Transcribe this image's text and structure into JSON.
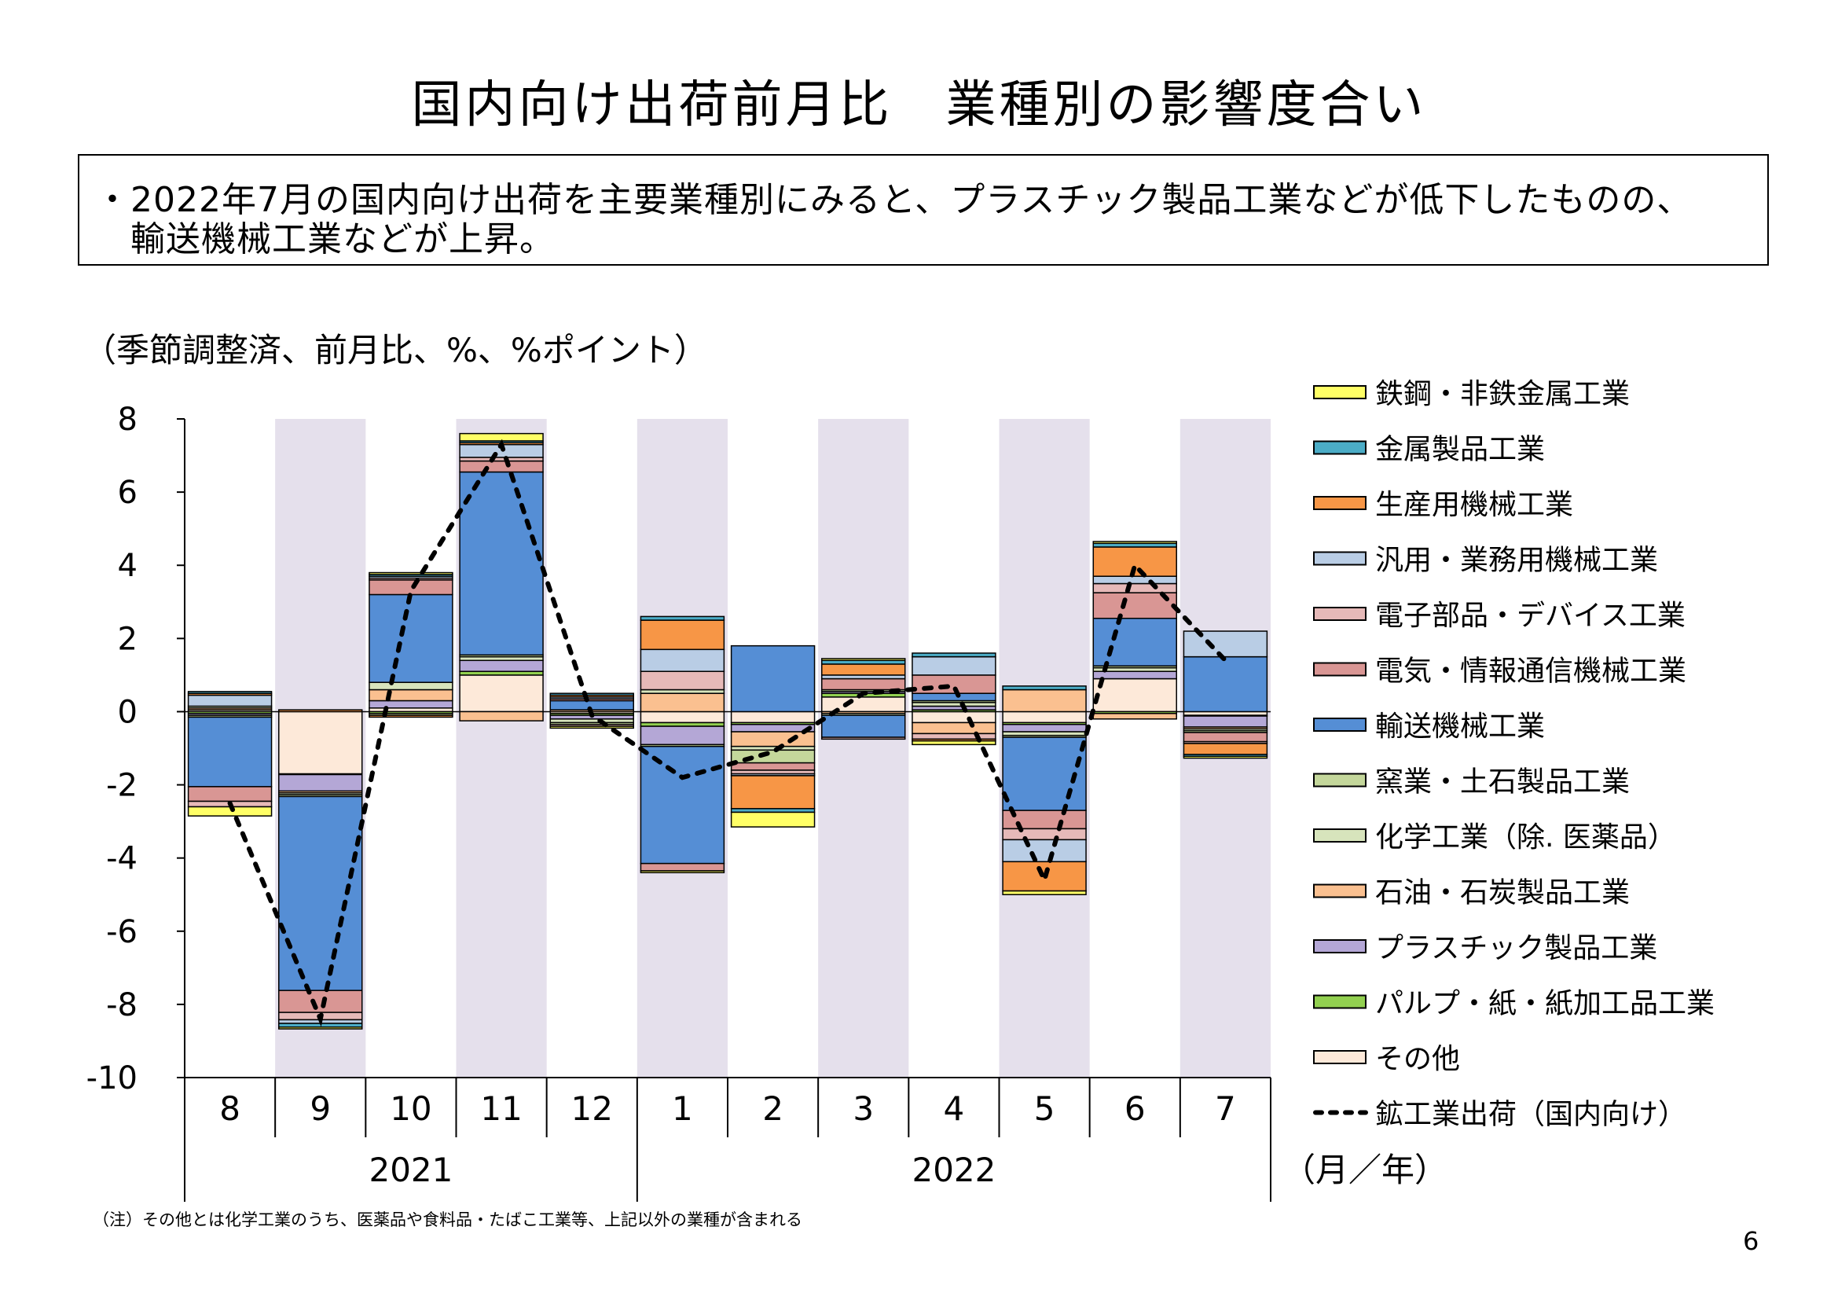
{
  "page": {
    "title": "国内向け出荷前月比　業種別の影響度合い",
    "summary_lines": [
      "・2022年7月の国内向け出荷を主要業種別にみると、プラスチック製品工業などが低下したものの、",
      "　輸送機械工業などが上昇。"
    ],
    "unit_note": "（季節調整済、前月比、%、%ポイント）",
    "footnote": "（注）その他とは化学工業のうち、医薬品や食料品・たばこ工業等、上記以外の業種が含まれる",
    "page_number": "6"
  },
  "chart_data": {
    "type": "bar",
    "stacked": true,
    "categories": [
      "8",
      "9",
      "10",
      "11",
      "12",
      "1",
      "2",
      "3",
      "4",
      "5",
      "6",
      "7"
    ],
    "year_groups": [
      {
        "label": "2021",
        "from": 0,
        "to": 4
      },
      {
        "label": "2022",
        "from": 5,
        "to": 11
      }
    ],
    "xunit": "（月／年）",
    "ylim": [
      -10,
      8
    ],
    "yticks": [
      8,
      6,
      4,
      2,
      0,
      -2,
      -4,
      -6,
      -8,
      -10
    ],
    "ytick_labels": [
      "8",
      "6",
      "4",
      "2",
      "0",
      "-2",
      "-4",
      "-6",
      "-8",
      "-10"
    ],
    "shaded_categories": [
      "9",
      "11",
      "1",
      "3",
      "5",
      "7"
    ],
    "series": [
      {
        "name": "その他",
        "color": "#fde9d9",
        "values": [
          0.05,
          -1.7,
          0.1,
          1.0,
          -0.05,
          -0.3,
          -0.3,
          0.4,
          -0.3,
          -0.3,
          0.9,
          -0.1
        ]
      },
      {
        "name": "パルプ・紙・紙加工品工業",
        "color": "#92d050",
        "values": [
          -0.05,
          -0.02,
          -0.05,
          0.1,
          -0.05,
          -0.1,
          -0.05,
          0.1,
          0.05,
          -0.05,
          -0.05,
          -0.02
        ]
      },
      {
        "name": "プラスチック製品工業",
        "color": "#b4a7d6",
        "values": [
          -0.05,
          -0.45,
          0.2,
          0.3,
          -0.1,
          -0.5,
          -0.2,
          0.05,
          0.1,
          -0.2,
          0.2,
          -0.3
        ]
      },
      {
        "name": "石油・石炭製品工業",
        "color": "#fac090",
        "values": [
          0.05,
          -0.05,
          0.3,
          -0.25,
          0.05,
          0.5,
          -0.4,
          -0.05,
          -0.3,
          0.6,
          -0.15,
          -0.05
        ]
      },
      {
        "name": "化学工業（除. 医薬品）",
        "color": "#d7e4bc",
        "values": [
          0.05,
          -0.05,
          0.2,
          0.1,
          -0.1,
          0.1,
          -0.1,
          -0.05,
          0.1,
          -0.1,
          0.1,
          -0.05
        ]
      },
      {
        "name": "窯業・土石製品工業",
        "color": "#c4d79b",
        "values": [
          -0.05,
          -0.05,
          -0.05,
          0.05,
          -0.05,
          -0.05,
          -0.35,
          0.05,
          0.05,
          -0.05,
          0.05,
          -0.05
        ]
      },
      {
        "name": "輸送機械工業",
        "color": "#558ed5",
        "values": [
          -1.9,
          -5.3,
          2.4,
          5.0,
          0.25,
          -3.2,
          1.8,
          -0.6,
          0.2,
          -2.0,
          1.3,
          1.5
        ]
      },
      {
        "name": "電気・情報通信機械工業",
        "color": "#d99694",
        "values": [
          -0.4,
          -0.6,
          0.4,
          0.3,
          0.05,
          -0.2,
          -0.2,
          0.3,
          0.5,
          -0.5,
          0.7,
          -0.25
        ]
      },
      {
        "name": "電子部品・デバイス工業",
        "color": "#e6b9b8",
        "values": [
          -0.15,
          -0.2,
          0.05,
          0.1,
          -0.05,
          0.5,
          -0.1,
          -0.05,
          -0.15,
          -0.3,
          0.25,
          -0.05
        ]
      },
      {
        "name": "汎用・業務用機械工業",
        "color": "#b9cde5",
        "values": [
          0.3,
          -0.1,
          0.05,
          0.35,
          0.05,
          0.6,
          -0.05,
          0.1,
          0.5,
          -0.6,
          0.2,
          0.7
        ]
      },
      {
        "name": "生産用機械工業",
        "color": "#f79646",
        "values": [
          0.05,
          0.05,
          -0.05,
          0.05,
          0.05,
          0.8,
          -0.9,
          0.3,
          -0.05,
          -0.8,
          0.8,
          -0.3
        ]
      },
      {
        "name": "金属製品工業",
        "color": "#4bacc6",
        "values": [
          0.05,
          -0.1,
          0.05,
          0.05,
          0.05,
          0.1,
          -0.1,
          0.1,
          0.1,
          0.1,
          0.1,
          -0.05
        ]
      },
      {
        "name": "鉄鋼・非鉄金属工業",
        "color": "#ffff66",
        "values": [
          -0.25,
          -0.05,
          0.05,
          0.2,
          -0.05,
          -0.05,
          -0.4,
          0.05,
          -0.1,
          -0.1,
          0.05,
          -0.05
        ]
      }
    ],
    "line_series": {
      "name": "鉱工業出荷（国内向け）",
      "color": "#000000",
      "values": [
        -2.5,
        -8.4,
        3.3,
        7.3,
        -0.1,
        -1.8,
        -1.1,
        0.5,
        0.7,
        -4.6,
        4.0,
        1.4
      ]
    },
    "legend_order": [
      "鉄鋼・非鉄金属工業",
      "金属製品工業",
      "生産用機械工業",
      "汎用・業務用機械工業",
      "電子部品・デバイス工業",
      "電気・情報通信機械工業",
      "輸送機械工業",
      "窯業・土石製品工業",
      "化学工業（除. 医薬品）",
      "石油・石炭製品工業",
      "プラスチック製品工業",
      "パルプ・紙・紙加工品工業",
      "その他"
    ],
    "legend_position": "right"
  }
}
